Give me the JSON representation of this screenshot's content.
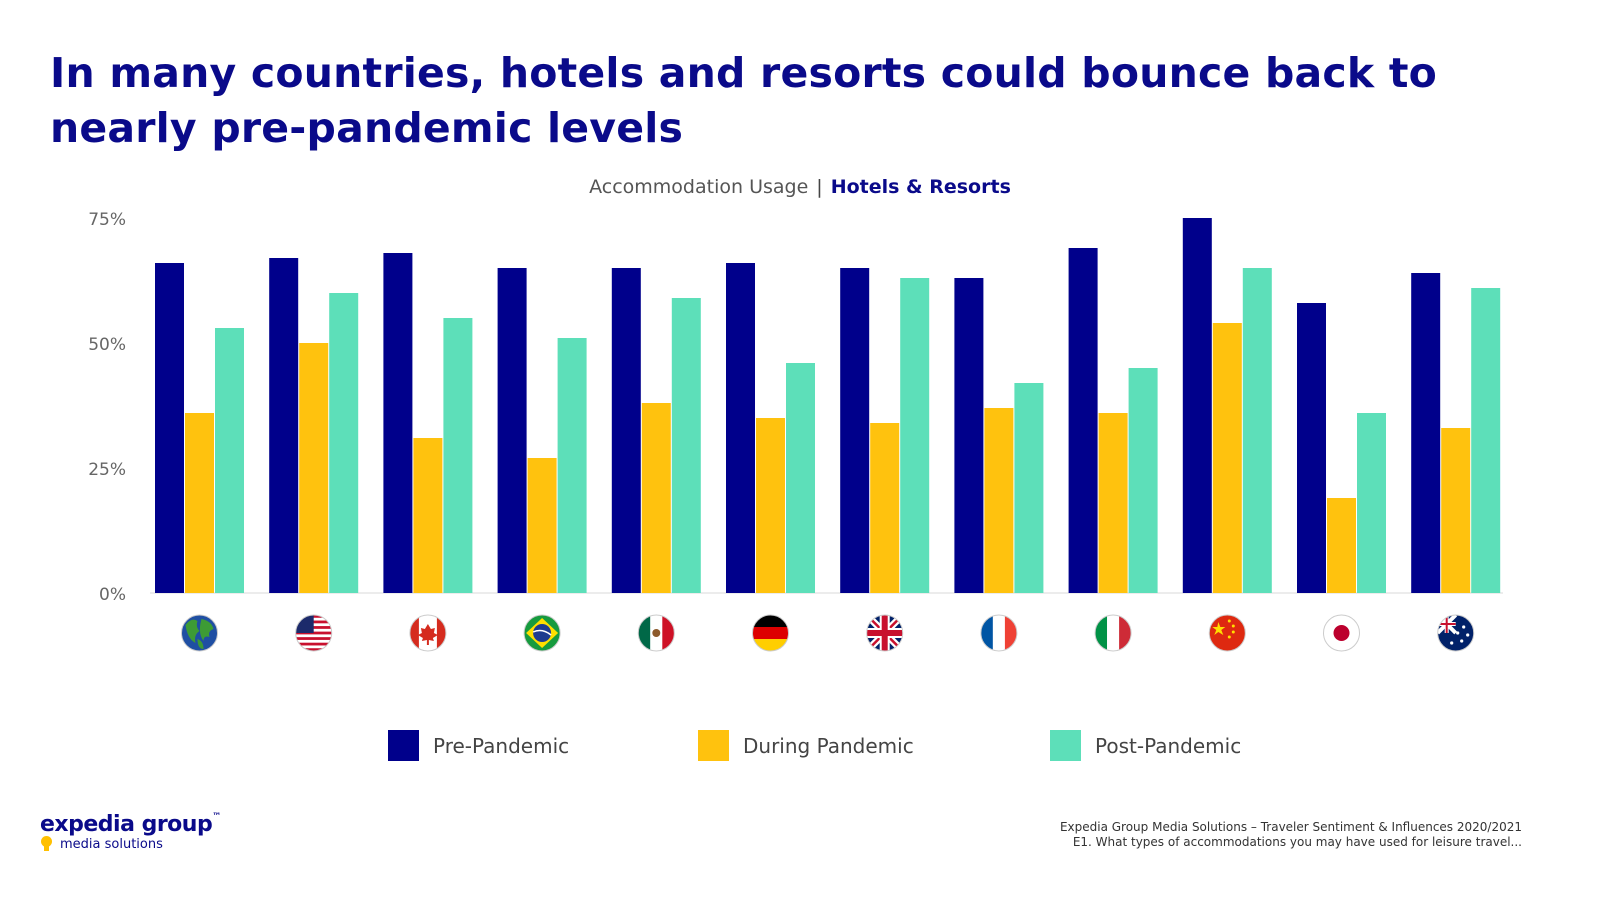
{
  "title": "In many countries, hotels and resorts could bounce back to nearly pre-pandemic levels",
  "subtitle": {
    "left": "Accommodation Usage",
    "separator": "|",
    "right": "Hotels & Resorts"
  },
  "chart_data": {
    "type": "bar",
    "title": "Accommodation Usage | Hotels & Resorts",
    "categories": [
      "Global",
      "United States",
      "Canada",
      "Brazil",
      "Mexico",
      "Germany",
      "United Kingdom",
      "France",
      "Italy",
      "China",
      "Japan",
      "Australia"
    ],
    "category_icons": [
      "globe-icon",
      "us-flag-icon",
      "canada-flag-icon",
      "brazil-flag-icon",
      "mexico-flag-icon",
      "germany-flag-icon",
      "uk-flag-icon",
      "france-flag-icon",
      "italy-flag-icon",
      "china-flag-icon",
      "japan-flag-icon",
      "australia-flag-icon"
    ],
    "series": [
      {
        "name": "Pre-Pandemic",
        "color": "#00008b",
        "values": [
          66,
          67,
          68,
          65,
          65,
          66,
          65,
          63,
          69,
          75,
          58,
          64
        ]
      },
      {
        "name": "During Pandemic",
        "color": "#ffc20e",
        "values": [
          36,
          50,
          31,
          27,
          38,
          35,
          34,
          37,
          36,
          54,
          19,
          33
        ]
      },
      {
        "name": "Post-Pandemic",
        "color": "#5ddfb9",
        "values": [
          53,
          60,
          55,
          51,
          59,
          46,
          63,
          42,
          45,
          65,
          36,
          61
        ]
      }
    ],
    "yticks": [
      "0%",
      "25%",
      "50%",
      "75%"
    ],
    "ytick_values": [
      0,
      25,
      50,
      75
    ],
    "ylim": [
      0,
      75
    ],
    "grid": false,
    "legend": "bottom-center"
  },
  "logo": {
    "main": "expedia group",
    "tm": "™",
    "sub": "media solutions"
  },
  "source": {
    "line1": "Expedia Group Media Solutions – Traveler Sentiment & Influences 2020/2021",
    "line2": "E1. What types of accommodations you may have used for leisure travel..."
  }
}
